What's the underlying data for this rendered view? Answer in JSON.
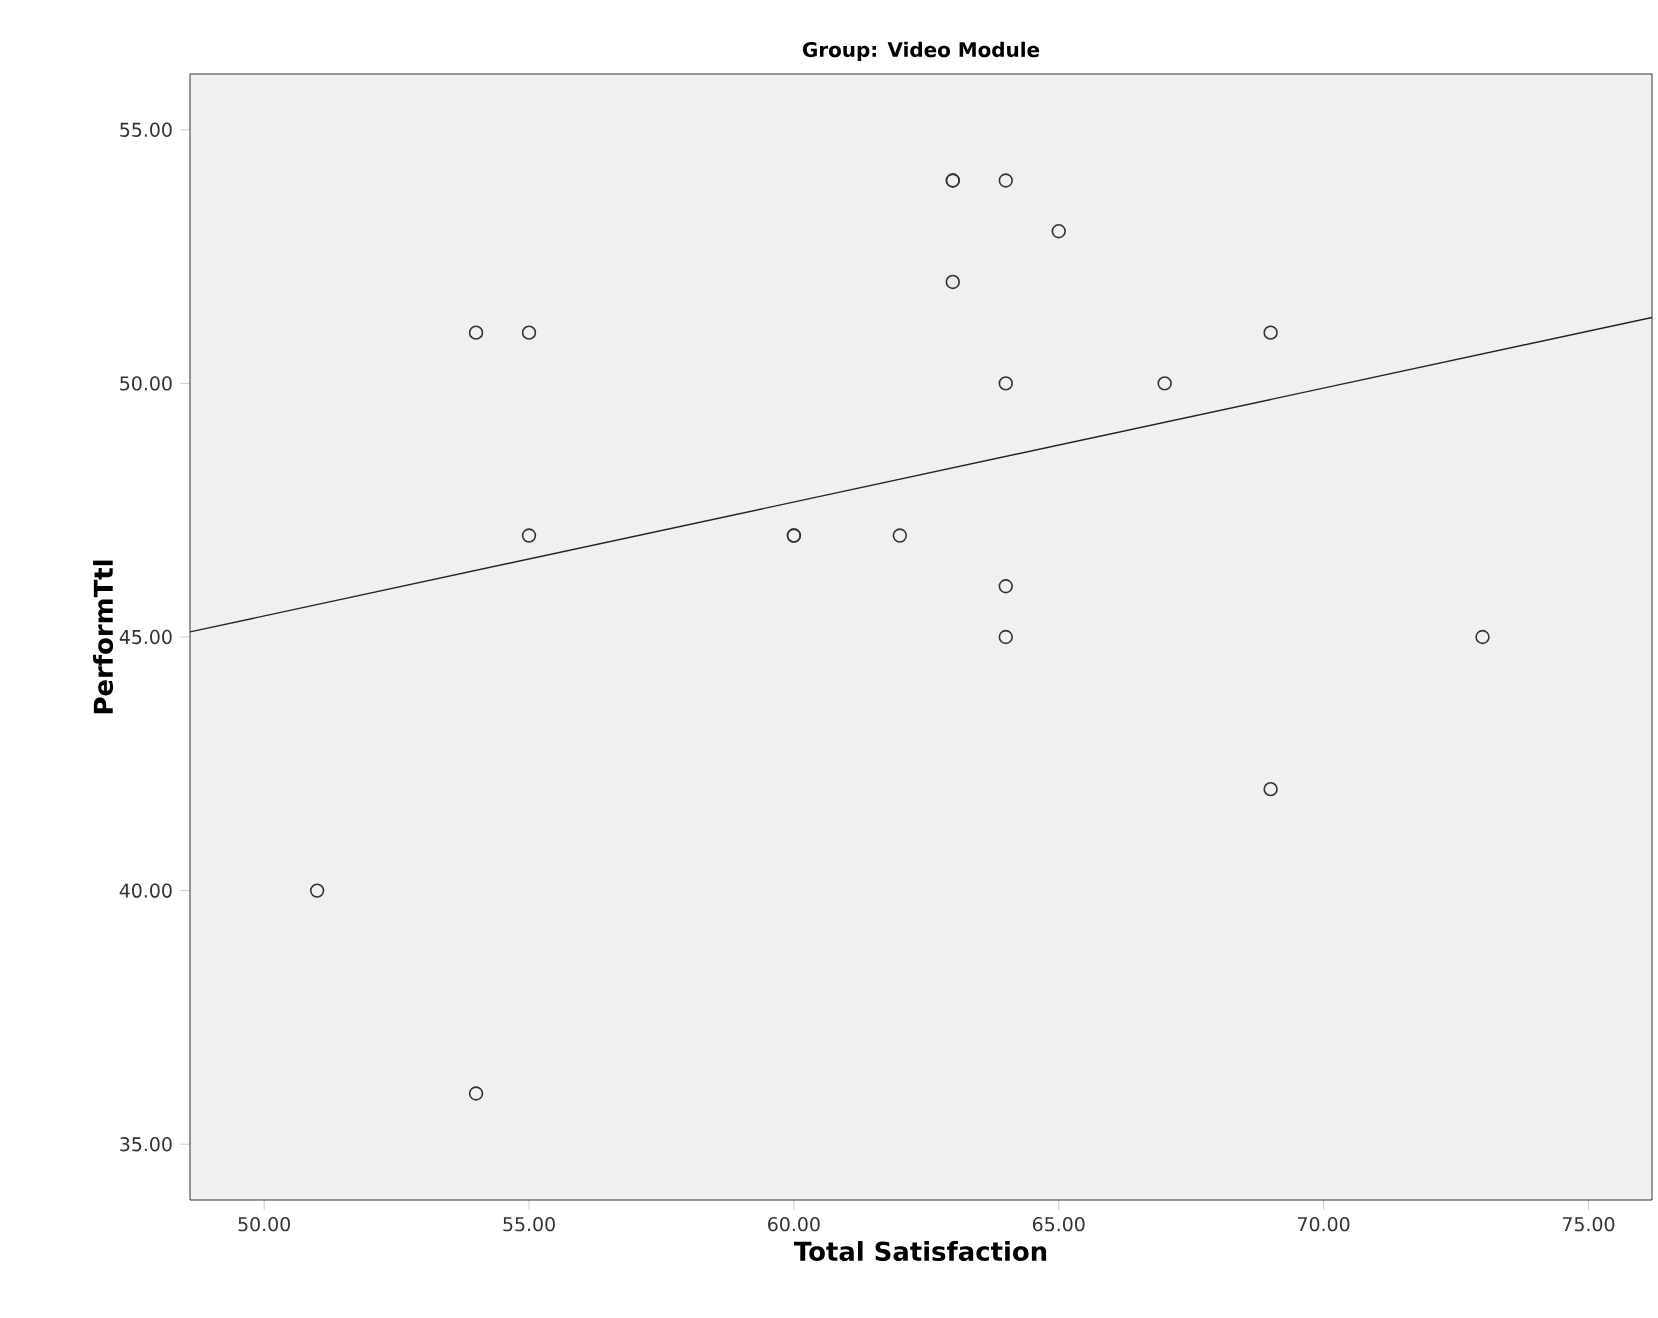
{
  "chart_data": {
    "type": "scatter",
    "title": "Group: Video Module",
    "xlabel": "Total Satisfaction",
    "ylabel": "PerformTtl",
    "xlim": [
      48.6,
      76.2
    ],
    "xticks": [
      {
        "value": 50,
        "label": "50.00"
      },
      {
        "value": 55,
        "label": "55.00"
      },
      {
        "value": 60,
        "label": "60.00"
      },
      {
        "value": 65,
        "label": "65.00"
      },
      {
        "value": 70,
        "label": "70.00"
      },
      {
        "value": 75,
        "label": "75.00"
      }
    ],
    "ylim": [
      33.9,
      56.1
    ],
    "yticks": [
      {
        "value": 35,
        "label": "35.00"
      },
      {
        "value": 40,
        "label": "40.00"
      },
      {
        "value": 45,
        "label": "45.00"
      },
      {
        "value": 50,
        "label": "50.00"
      },
      {
        "value": 55,
        "label": "55.00"
      }
    ],
    "series": [
      {
        "color": "#333333",
        "marker": "circle",
        "x": [
          51,
          54,
          54,
          55,
          55,
          60,
          60,
          62,
          63,
          63,
          63,
          64,
          65,
          64,
          64,
          64,
          67,
          69,
          69,
          73
        ],
        "values": [
          40,
          36,
          51,
          51,
          47,
          47,
          47,
          47,
          54,
          54,
          52,
          54,
          53,
          50,
          46,
          45,
          50,
          51,
          42,
          45
        ]
      },
      {
        "type": "line",
        "color": "#222222",
        "marker": "none",
        "line_style": "solid",
        "x": [
          48.6,
          76.2
        ],
        "values": [
          45.1,
          51.3
        ]
      }
    ]
  }
}
